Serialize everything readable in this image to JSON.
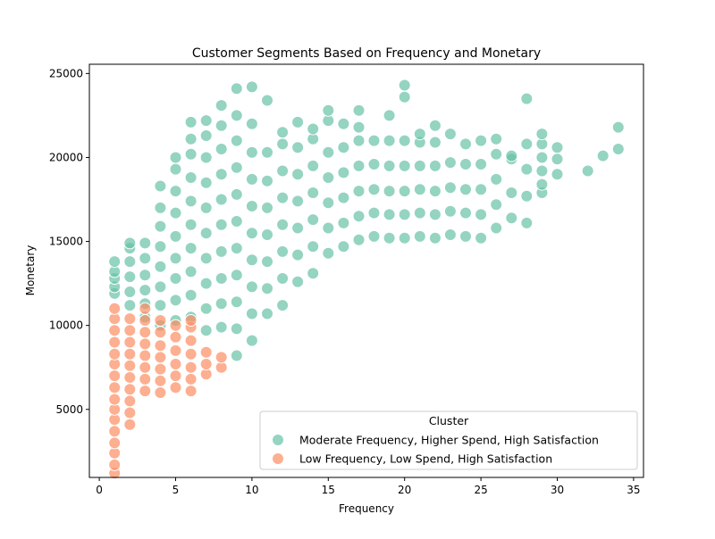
{
  "chart_data": {
    "type": "scatter",
    "title": "Customer Segments Based on Frequency and Monetary",
    "xlabel": "Frequency",
    "ylabel": "Monetary",
    "xlim": [
      -0.65,
      35.65
    ],
    "ylim": [
      950,
      25550
    ],
    "xticks": [
      0,
      5,
      10,
      15,
      20,
      25,
      30,
      35
    ],
    "yticks": [
      5000,
      10000,
      15000,
      20000,
      25000
    ],
    "grid": false,
    "legend": {
      "title": "Cluster",
      "placement": "lower-right"
    },
    "series": [
      {
        "name": "Moderate Frequency, Higher Spend, High Satisfaction",
        "color": "#66c2a5",
        "points": [
          [
            1,
            11900
          ],
          [
            1,
            12300
          ],
          [
            1,
            12800
          ],
          [
            1,
            13200
          ],
          [
            1,
            13800
          ],
          [
            2,
            11200
          ],
          [
            2,
            12000
          ],
          [
            2,
            12900
          ],
          [
            2,
            13800
          ],
          [
            2,
            14600
          ],
          [
            2,
            14900
          ],
          [
            3,
            10500
          ],
          [
            3,
            11300
          ],
          [
            3,
            12100
          ],
          [
            3,
            13000
          ],
          [
            3,
            14000
          ],
          [
            3,
            14900
          ],
          [
            4,
            10000
          ],
          [
            4,
            11200
          ],
          [
            4,
            12300
          ],
          [
            4,
            13500
          ],
          [
            4,
            14700
          ],
          [
            4,
            15900
          ],
          [
            4,
            17000
          ],
          [
            4,
            18300
          ],
          [
            5,
            10300
          ],
          [
            5,
            11500
          ],
          [
            5,
            12800
          ],
          [
            5,
            14000
          ],
          [
            5,
            15300
          ],
          [
            5,
            16700
          ],
          [
            5,
            18000
          ],
          [
            5,
            19300
          ],
          [
            5,
            20000
          ],
          [
            6,
            10500
          ],
          [
            6,
            11800
          ],
          [
            6,
            13200
          ],
          [
            6,
            14600
          ],
          [
            6,
            16000
          ],
          [
            6,
            17400
          ],
          [
            6,
            18800
          ],
          [
            6,
            20200
          ],
          [
            6,
            21100
          ],
          [
            6,
            22100
          ],
          [
            7,
            9700
          ],
          [
            7,
            11000
          ],
          [
            7,
            12500
          ],
          [
            7,
            14000
          ],
          [
            7,
            15500
          ],
          [
            7,
            17000
          ],
          [
            7,
            18500
          ],
          [
            7,
            20000
          ],
          [
            7,
            21300
          ],
          [
            7,
            22200
          ],
          [
            8,
            9900
          ],
          [
            8,
            11300
          ],
          [
            8,
            12800
          ],
          [
            8,
            14400
          ],
          [
            8,
            16000
          ],
          [
            8,
            17500
          ],
          [
            8,
            19000
          ],
          [
            8,
            20500
          ],
          [
            8,
            21900
          ],
          [
            8,
            23100
          ],
          [
            9,
            8200
          ],
          [
            9,
            9800
          ],
          [
            9,
            11400
          ],
          [
            9,
            13000
          ],
          [
            9,
            14600
          ],
          [
            9,
            16200
          ],
          [
            9,
            17800
          ],
          [
            9,
            19400
          ],
          [
            9,
            21000
          ],
          [
            9,
            22500
          ],
          [
            9,
            24100
          ],
          [
            10,
            9100
          ],
          [
            10,
            10700
          ],
          [
            10,
            12300
          ],
          [
            10,
            13900
          ],
          [
            10,
            15500
          ],
          [
            10,
            17100
          ],
          [
            10,
            18700
          ],
          [
            10,
            20300
          ],
          [
            10,
            22000
          ],
          [
            10,
            24200
          ],
          [
            11,
            10700
          ],
          [
            11,
            12200
          ],
          [
            11,
            13800
          ],
          [
            11,
            15400
          ],
          [
            11,
            17000
          ],
          [
            11,
            18600
          ],
          [
            11,
            20300
          ],
          [
            11,
            23400
          ],
          [
            12,
            11200
          ],
          [
            12,
            12800
          ],
          [
            12,
            14400
          ],
          [
            12,
            16000
          ],
          [
            12,
            17600
          ],
          [
            12,
            19200
          ],
          [
            12,
            20800
          ],
          [
            12,
            21500
          ],
          [
            13,
            12600
          ],
          [
            13,
            14200
          ],
          [
            13,
            15800
          ],
          [
            13,
            17400
          ],
          [
            13,
            19000
          ],
          [
            13,
            20600
          ],
          [
            13,
            22100
          ],
          [
            14,
            13100
          ],
          [
            14,
            14700
          ],
          [
            14,
            16300
          ],
          [
            14,
            17900
          ],
          [
            14,
            19500
          ],
          [
            14,
            21100
          ],
          [
            14,
            21700
          ],
          [
            15,
            14300
          ],
          [
            15,
            15800
          ],
          [
            15,
            17300
          ],
          [
            15,
            18800
          ],
          [
            15,
            20300
          ],
          [
            15,
            22200
          ],
          [
            15,
            22800
          ],
          [
            16,
            14700
          ],
          [
            16,
            16100
          ],
          [
            16,
            17600
          ],
          [
            16,
            19100
          ],
          [
            16,
            20600
          ],
          [
            16,
            22000
          ],
          [
            17,
            15100
          ],
          [
            17,
            16500
          ],
          [
            17,
            18000
          ],
          [
            17,
            19500
          ],
          [
            17,
            21000
          ],
          [
            17,
            21800
          ],
          [
            17,
            22800
          ],
          [
            18,
            15300
          ],
          [
            18,
            16700
          ],
          [
            18,
            18100
          ],
          [
            18,
            19600
          ],
          [
            18,
            21000
          ],
          [
            19,
            15200
          ],
          [
            19,
            16600
          ],
          [
            19,
            18000
          ],
          [
            19,
            19500
          ],
          [
            19,
            21000
          ],
          [
            19,
            22500
          ],
          [
            20,
            15200
          ],
          [
            20,
            16600
          ],
          [
            20,
            18000
          ],
          [
            20,
            19500
          ],
          [
            20,
            21000
          ],
          [
            20,
            23600
          ],
          [
            20,
            24300
          ],
          [
            21,
            15300
          ],
          [
            21,
            16700
          ],
          [
            21,
            18100
          ],
          [
            21,
            19500
          ],
          [
            21,
            20900
          ],
          [
            21,
            21400
          ],
          [
            22,
            15200
          ],
          [
            22,
            16600
          ],
          [
            22,
            18000
          ],
          [
            22,
            19500
          ],
          [
            22,
            20900
          ],
          [
            22,
            21900
          ],
          [
            23,
            15400
          ],
          [
            23,
            16800
          ],
          [
            23,
            18200
          ],
          [
            23,
            19700
          ],
          [
            23,
            21400
          ],
          [
            24,
            15300
          ],
          [
            24,
            16700
          ],
          [
            24,
            18100
          ],
          [
            24,
            19600
          ],
          [
            24,
            20800
          ],
          [
            25,
            15200
          ],
          [
            25,
            16600
          ],
          [
            25,
            18100
          ],
          [
            25,
            19600
          ],
          [
            25,
            21000
          ],
          [
            26,
            15800
          ],
          [
            26,
            17200
          ],
          [
            26,
            18700
          ],
          [
            26,
            20200
          ],
          [
            26,
            21100
          ],
          [
            27,
            16400
          ],
          [
            27,
            17900
          ],
          [
            27,
            19900
          ],
          [
            27,
            20100
          ],
          [
            28,
            16100
          ],
          [
            28,
            17700
          ],
          [
            28,
            19300
          ],
          [
            28,
            20800
          ],
          [
            28,
            23500
          ],
          [
            29,
            17900
          ],
          [
            29,
            18400
          ],
          [
            29,
            19200
          ],
          [
            29,
            20000
          ],
          [
            29,
            20800
          ],
          [
            29,
            21400
          ],
          [
            30,
            19000
          ],
          [
            30,
            19900
          ],
          [
            30,
            20600
          ],
          [
            32,
            19200
          ],
          [
            33,
            20100
          ],
          [
            34,
            20500
          ],
          [
            34,
            21800
          ]
        ]
      },
      {
        "name": "Low Frequency, Low Spend, High Satisfaction",
        "color": "#fc8d62",
        "points": [
          [
            1,
            1200
          ],
          [
            1,
            1700
          ],
          [
            1,
            2400
          ],
          [
            1,
            3000
          ],
          [
            1,
            3700
          ],
          [
            1,
            4400
          ],
          [
            1,
            5000
          ],
          [
            1,
            5600
          ],
          [
            1,
            6300
          ],
          [
            1,
            7000
          ],
          [
            1,
            7700
          ],
          [
            1,
            8300
          ],
          [
            1,
            9000
          ],
          [
            1,
            9700
          ],
          [
            1,
            10400
          ],
          [
            1,
            11000
          ],
          [
            2,
            4100
          ],
          [
            2,
            4800
          ],
          [
            2,
            5500
          ],
          [
            2,
            6200
          ],
          [
            2,
            6900
          ],
          [
            2,
            7600
          ],
          [
            2,
            8300
          ],
          [
            2,
            9000
          ],
          [
            2,
            9700
          ],
          [
            2,
            10400
          ],
          [
            3,
            6100
          ],
          [
            3,
            6800
          ],
          [
            3,
            7500
          ],
          [
            3,
            8200
          ],
          [
            3,
            8900
          ],
          [
            3,
            9600
          ],
          [
            3,
            10300
          ],
          [
            3,
            11000
          ],
          [
            4,
            6000
          ],
          [
            4,
            6700
          ],
          [
            4,
            7400
          ],
          [
            4,
            8100
          ],
          [
            4,
            8800
          ],
          [
            4,
            9600
          ],
          [
            4,
            10300
          ],
          [
            5,
            6300
          ],
          [
            5,
            7000
          ],
          [
            5,
            7700
          ],
          [
            5,
            8500
          ],
          [
            5,
            9300
          ],
          [
            5,
            10000
          ],
          [
            6,
            6100
          ],
          [
            6,
            6800
          ],
          [
            6,
            7500
          ],
          [
            6,
            8300
          ],
          [
            6,
            9100
          ],
          [
            6,
            9900
          ],
          [
            6,
            10300
          ],
          [
            7,
            7100
          ],
          [
            7,
            7700
          ],
          [
            7,
            8400
          ],
          [
            8,
            7500
          ],
          [
            8,
            8100
          ]
        ]
      }
    ]
  }
}
